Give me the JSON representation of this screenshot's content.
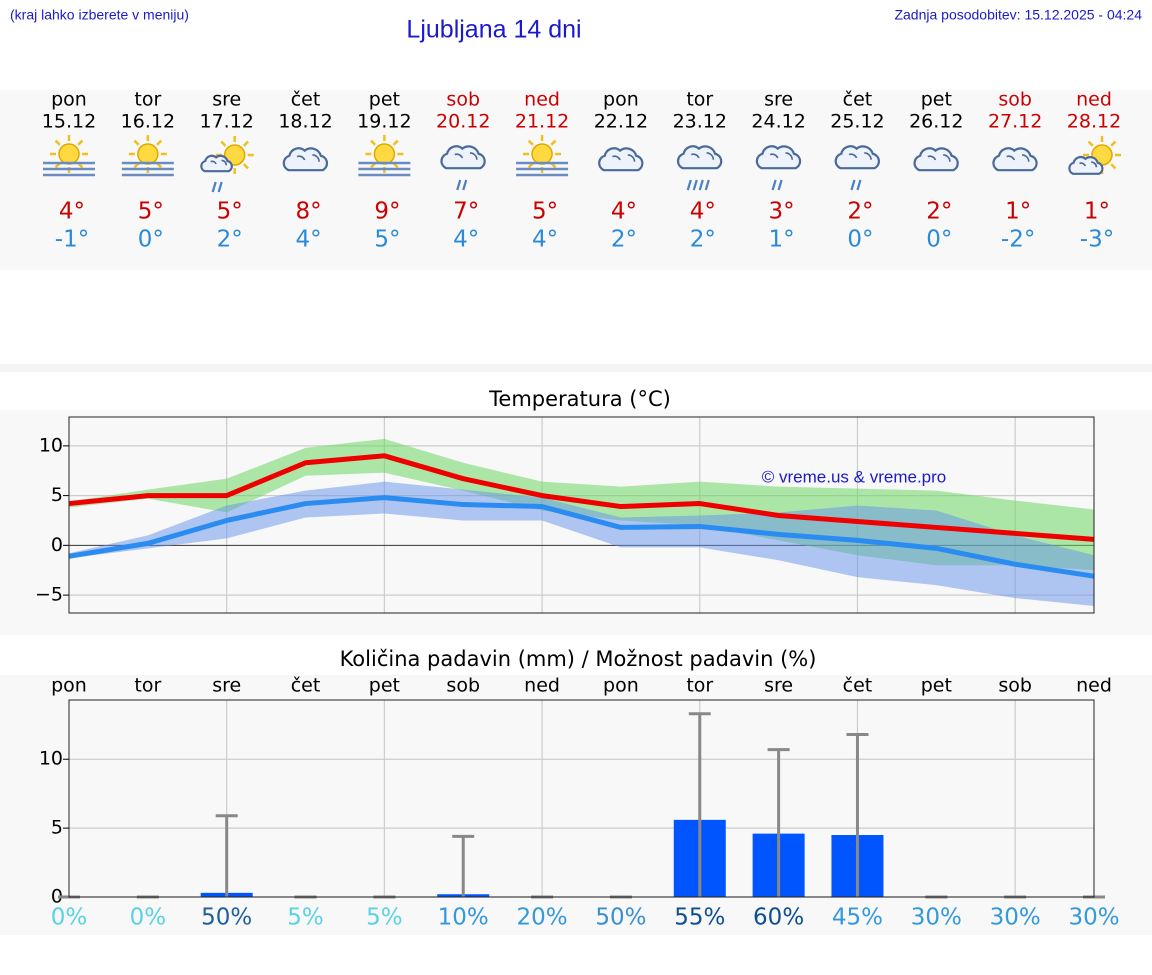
{
  "header": {
    "hint": "(kraj lahko izberete v meniju)",
    "title": "Ljubljana 14 dni",
    "updated": "Zadnja posodobitev: 15.12.2025 - 04:24"
  },
  "forecast": {
    "days": [
      {
        "day": "pon",
        "date": "15.12",
        "icon": "sun-fog",
        "max": "4°",
        "min": "-1°",
        "weekend": false
      },
      {
        "day": "tor",
        "date": "16.12",
        "icon": "sun-fog",
        "max": "5°",
        "min": "0°",
        "weekend": false
      },
      {
        "day": "sre",
        "date": "17.12",
        "icon": "sun-cloud-rain",
        "max": "5°",
        "min": "2°",
        "weekend": false
      },
      {
        "day": "čet",
        "date": "18.12",
        "icon": "cloud",
        "max": "8°",
        "min": "4°",
        "weekend": false
      },
      {
        "day": "pet",
        "date": "19.12",
        "icon": "sun-fog",
        "max": "9°",
        "min": "5°",
        "weekend": false
      },
      {
        "day": "sob",
        "date": "20.12",
        "icon": "cloud-rain",
        "max": "7°",
        "min": "4°",
        "weekend": true
      },
      {
        "day": "ned",
        "date": "21.12",
        "icon": "sun-fog",
        "max": "5°",
        "min": "4°",
        "weekend": true
      },
      {
        "day": "pon",
        "date": "22.12",
        "icon": "cloud",
        "max": "4°",
        "min": "2°",
        "weekend": false
      },
      {
        "day": "tor",
        "date": "23.12",
        "icon": "cloud-heavy-rain",
        "max": "4°",
        "min": "2°",
        "weekend": false
      },
      {
        "day": "sre",
        "date": "24.12",
        "icon": "cloud-rain",
        "max": "3°",
        "min": "1°",
        "weekend": false
      },
      {
        "day": "čet",
        "date": "25.12",
        "icon": "cloud-rain",
        "max": "2°",
        "min": "0°",
        "weekend": false
      },
      {
        "day": "pet",
        "date": "26.12",
        "icon": "cloud",
        "max": "2°",
        "min": "0°",
        "weekend": false
      },
      {
        "day": "sob",
        "date": "27.12",
        "icon": "cloud",
        "max": "1°",
        "min": "-2°",
        "weekend": true
      },
      {
        "day": "ned",
        "date": "28.12",
        "icon": "sun-cloud",
        "max": "1°",
        "min": "-3°",
        "weekend": true
      }
    ]
  },
  "chart_data": [
    {
      "type": "line",
      "title": "Temperatura (°C)",
      "watermark": "© vreme.us & vreme.pro",
      "categories": [
        null,
        null,
        null,
        null,
        null,
        null,
        null,
        null,
        null,
        null,
        null,
        null,
        null,
        null
      ],
      "ylim": [
        -6.8,
        12.9
      ],
      "yticks": [
        {
          "value": -5,
          "label": "−5"
        },
        0,
        5,
        10
      ],
      "grid": true,
      "zero_line": true,
      "bands": [
        {
          "color": "rgba(110,215,100,0.55)",
          "high": [
            4.4,
            5.6,
            6.7,
            9.8,
            10.7,
            8.3,
            6.4,
            5.9,
            6.4,
            5.9,
            5.7,
            5.5,
            4.5,
            3.6
          ],
          "low": [
            3.8,
            4.7,
            3.3,
            7.0,
            7.3,
            5.5,
            3.5,
            2.5,
            2.0,
            0.5,
            -1.0,
            -2.0,
            -2.0,
            -2.5
          ]
        },
        {
          "color": "rgba(100,145,235,0.5)",
          "high": [
            -0.8,
            1.0,
            4.0,
            5.5,
            6.4,
            5.6,
            4.8,
            2.8,
            3.0,
            3.3,
            4.0,
            3.5,
            1.0,
            -1.0
          ],
          "low": [
            -1.3,
            -0.3,
            0.7,
            2.8,
            3.2,
            2.5,
            2.5,
            -0.2,
            -0.2,
            -1.5,
            -3.2,
            -4.0,
            -5.3,
            -6.1
          ]
        }
      ],
      "series": [
        {
          "color": "#ee0000",
          "values": [
            4.2,
            5,
            5,
            8.3,
            9,
            6.7,
            5,
            3.9,
            4.2,
            3.0,
            2.4,
            1.8,
            1.2,
            0.6
          ]
        },
        {
          "color": "#2a8cf0",
          "values": [
            -1.1,
            0.2,
            2.5,
            4.2,
            4.8,
            4.1,
            3.9,
            1.8,
            1.9,
            1.1,
            0.5,
            -0.3,
            -1.9,
            -3.1
          ]
        }
      ]
    },
    {
      "type": "bar",
      "title": "Količina padavin (mm) / Možnost padavin (%)",
      "categories": [
        "pon",
        "tor",
        "sre",
        "čet",
        "pet",
        "sob",
        "ned",
        "pon",
        "tor",
        "sre",
        "čet",
        "pet",
        "sob",
        "ned"
      ],
      "values": [
        0,
        0,
        0.3,
        0,
        0,
        0.2,
        0,
        0,
        5.6,
        4.6,
        4.5,
        0,
        0,
        0
      ],
      "color": "#0055ff",
      "max": [
        0,
        0,
        5.9,
        0,
        0,
        4.4,
        0,
        0,
        13.3,
        10.7,
        11.8,
        0,
        0,
        0
      ],
      "max_color": "#888888",
      "ylim": [
        0,
        14.3
      ],
      "yticks": [
        0,
        5,
        10
      ],
      "grid": true,
      "chance": {
        "values": [
          0,
          0,
          50,
          5,
          5,
          10,
          20,
          50,
          55,
          60,
          45,
          30,
          30,
          30
        ],
        "value_labels": [
          "0%",
          "0%",
          "50%",
          "5%",
          "5%",
          "10%",
          "20%",
          "50%",
          "55%",
          "60%",
          "45%",
          "30%",
          "30%",
          "30%"
        ],
        "colors": [
          "#5ad2e6",
          "#5ad2e6",
          "#1f5f9f",
          "#5ad2e6",
          "#5ad2e6",
          "#3399dd",
          "#3399dd",
          "#3a8fd0",
          "#0f4f8f",
          "#0f4f8f",
          "#3399dd",
          "#3399dd",
          "#3399dd",
          "#3399dd"
        ]
      }
    }
  ]
}
